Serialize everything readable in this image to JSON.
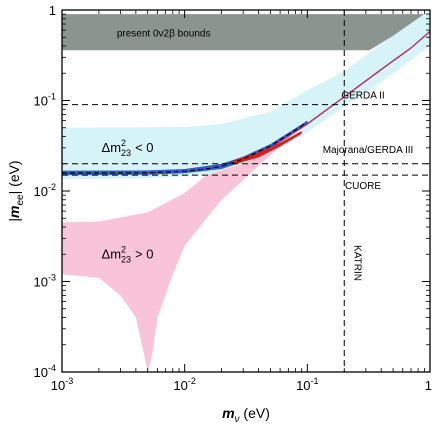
{
  "chart_data": {
    "type": "area",
    "title": "",
    "xlabel_main": "m",
    "xlabel_sub": "ν",
    "xlabel_unit": " (eV)",
    "ylabel_prefix": "|",
    "ylabel_main": "m",
    "ylabel_sub": "ee",
    "ylabel_suffix": "| (eV)",
    "x_scale": "log",
    "y_scale": "log",
    "xlim": [
      0.001,
      1
    ],
    "ylim": [
      0.0001,
      1
    ],
    "x_ticks": [
      {
        "value": 0.001,
        "base": "10",
        "exp": "-3"
      },
      {
        "value": 0.01,
        "base": "10",
        "exp": "-2"
      },
      {
        "value": 0.1,
        "base": "10",
        "exp": "-1"
      },
      {
        "value": 1,
        "base": "1",
        "exp": ""
      }
    ],
    "y_ticks": [
      {
        "value": 0.0001,
        "base": "10",
        "exp": "-4"
      },
      {
        "value": 0.001,
        "base": "10",
        "exp": "-3"
      },
      {
        "value": 0.01,
        "base": "10",
        "exp": "-2"
      },
      {
        "value": 0.1,
        "base": "10",
        "exp": "-1"
      },
      {
        "value": 1,
        "base": "1",
        "exp": ""
      }
    ],
    "grid": false,
    "colors": {
      "bound_band": "#8a9590",
      "inverted_band": "#d6f3f8",
      "normal_band": "#fac4d8",
      "blue_band": "#2f5fd0",
      "red_band": "#d62020",
      "curve": "#b03060",
      "dashed": "#000000"
    },
    "regions": [
      {
        "name": "present 0ν2β bounds",
        "label": "present 0ν2β bounds",
        "color_key": "bound_band",
        "upper": [
          [
            0.001,
            0.9
          ],
          [
            1,
            0.9
          ]
        ],
        "lower": [
          [
            0.001,
            0.36
          ],
          [
            0.32,
            0.36
          ],
          [
            0.6,
            0.6
          ],
          [
            1,
            0.9
          ]
        ]
      },
      {
        "name": "inverted",
        "color_key": "inverted_band",
        "upper": [
          [
            0.001,
            0.05
          ],
          [
            0.01,
            0.051
          ],
          [
            0.02,
            0.055
          ],
          [
            0.05,
            0.075
          ],
          [
            0.1,
            0.13
          ],
          [
            0.2,
            0.21
          ],
          [
            0.4,
            0.42
          ],
          [
            1,
            1.0
          ]
        ],
        "lower": [
          [
            0.001,
            0.0135
          ],
          [
            0.005,
            0.0138
          ],
          [
            0.01,
            0.0145
          ],
          [
            0.02,
            0.016
          ],
          [
            0.05,
            0.026
          ],
          [
            0.1,
            0.045
          ],
          [
            0.2,
            0.085
          ],
          [
            0.4,
            0.16
          ],
          [
            1,
            0.4
          ]
        ]
      },
      {
        "name": "normal",
        "color_key": "normal_band",
        "upper": [
          [
            0.001,
            0.0045
          ],
          [
            0.002,
            0.0046
          ],
          [
            0.005,
            0.0058
          ],
          [
            0.01,
            0.0095
          ],
          [
            0.015,
            0.015
          ],
          [
            0.03,
            0.02
          ],
          [
            0.05,
            0.028
          ],
          [
            0.1,
            0.06
          ],
          [
            0.2,
            0.12
          ],
          [
            0.4,
            0.25
          ],
          [
            1,
            0.6
          ]
        ],
        "lower": [
          [
            0.001,
            0.0012
          ],
          [
            0.002,
            0.0011
          ],
          [
            0.003,
            0.0007
          ],
          [
            0.004,
            0.0004
          ],
          [
            0.0047,
            0.00015
          ],
          [
            0.005,
            0.0001
          ],
          [
            0.0054,
            0.00015
          ],
          [
            0.006,
            0.0004
          ],
          [
            0.008,
            0.0012
          ],
          [
            0.01,
            0.0025
          ],
          [
            0.02,
            0.008
          ],
          [
            0.05,
            0.025
          ],
          [
            0.1,
            0.06
          ],
          [
            0.2,
            0.12
          ],
          [
            0.4,
            0.25
          ],
          [
            1,
            0.6
          ]
        ]
      },
      {
        "name": "blue band",
        "color_key": "blue_band",
        "upper": [
          [
            0.001,
            0.0168
          ],
          [
            0.005,
            0.0169
          ],
          [
            0.01,
            0.0175
          ],
          [
            0.02,
            0.02
          ],
          [
            0.03,
            0.024
          ],
          [
            0.05,
            0.033
          ],
          [
            0.07,
            0.044
          ],
          [
            0.1,
            0.06
          ]
        ],
        "lower": [
          [
            0.001,
            0.015
          ],
          [
            0.005,
            0.0151
          ],
          [
            0.01,
            0.0157
          ],
          [
            0.02,
            0.0175
          ],
          [
            0.03,
            0.021
          ],
          [
            0.05,
            0.03
          ],
          [
            0.07,
            0.04
          ],
          [
            0.1,
            0.055
          ]
        ]
      },
      {
        "name": "red band",
        "color_key": "red_band",
        "upper": [
          [
            0.025,
            0.022
          ],
          [
            0.04,
            0.027
          ],
          [
            0.06,
            0.034
          ],
          [
            0.09,
            0.046
          ]
        ],
        "lower": [
          [
            0.025,
            0.0195
          ],
          [
            0.04,
            0.0235
          ],
          [
            0.06,
            0.031
          ],
          [
            0.09,
            0.043
          ]
        ]
      }
    ],
    "curves": [
      {
        "name": "diagonal",
        "color_key": "curve",
        "points": [
          [
            0.05,
            0.03
          ],
          [
            0.1,
            0.055
          ],
          [
            0.2,
            0.11
          ],
          [
            0.4,
            0.22
          ],
          [
            0.7,
            0.38
          ],
          [
            1,
            0.58
          ]
        ]
      },
      {
        "name": "blue dashed",
        "color_key": "dashed",
        "dashed": true,
        "points": [
          [
            0.001,
            0.0158
          ],
          [
            0.005,
            0.0159
          ],
          [
            0.01,
            0.0165
          ],
          [
            0.015,
            0.0175
          ],
          [
            0.02,
            0.0188
          ],
          [
            0.03,
            0.0225
          ],
          [
            0.05,
            0.0315
          ],
          [
            0.07,
            0.042
          ],
          [
            0.1,
            0.0575
          ]
        ]
      }
    ],
    "h_lines": [
      {
        "y": 0.09,
        "label": "GERDA II"
      },
      {
        "y": 0.02,
        "label": "Majorana/GERDA III"
      },
      {
        "y": 0.015,
        "label": "CUORE"
      }
    ],
    "v_lines": [
      {
        "x": 0.2,
        "label": "KATRIN"
      }
    ],
    "annotations": [
      {
        "name": "inverted-label",
        "text": "Δm²₂₃ < 0",
        "x": 0.0021,
        "y": 0.027
      },
      {
        "name": "normal-label",
        "text": "Δm²₂₃ > 0",
        "x": 0.0021,
        "y": 0.0018
      }
    ]
  }
}
